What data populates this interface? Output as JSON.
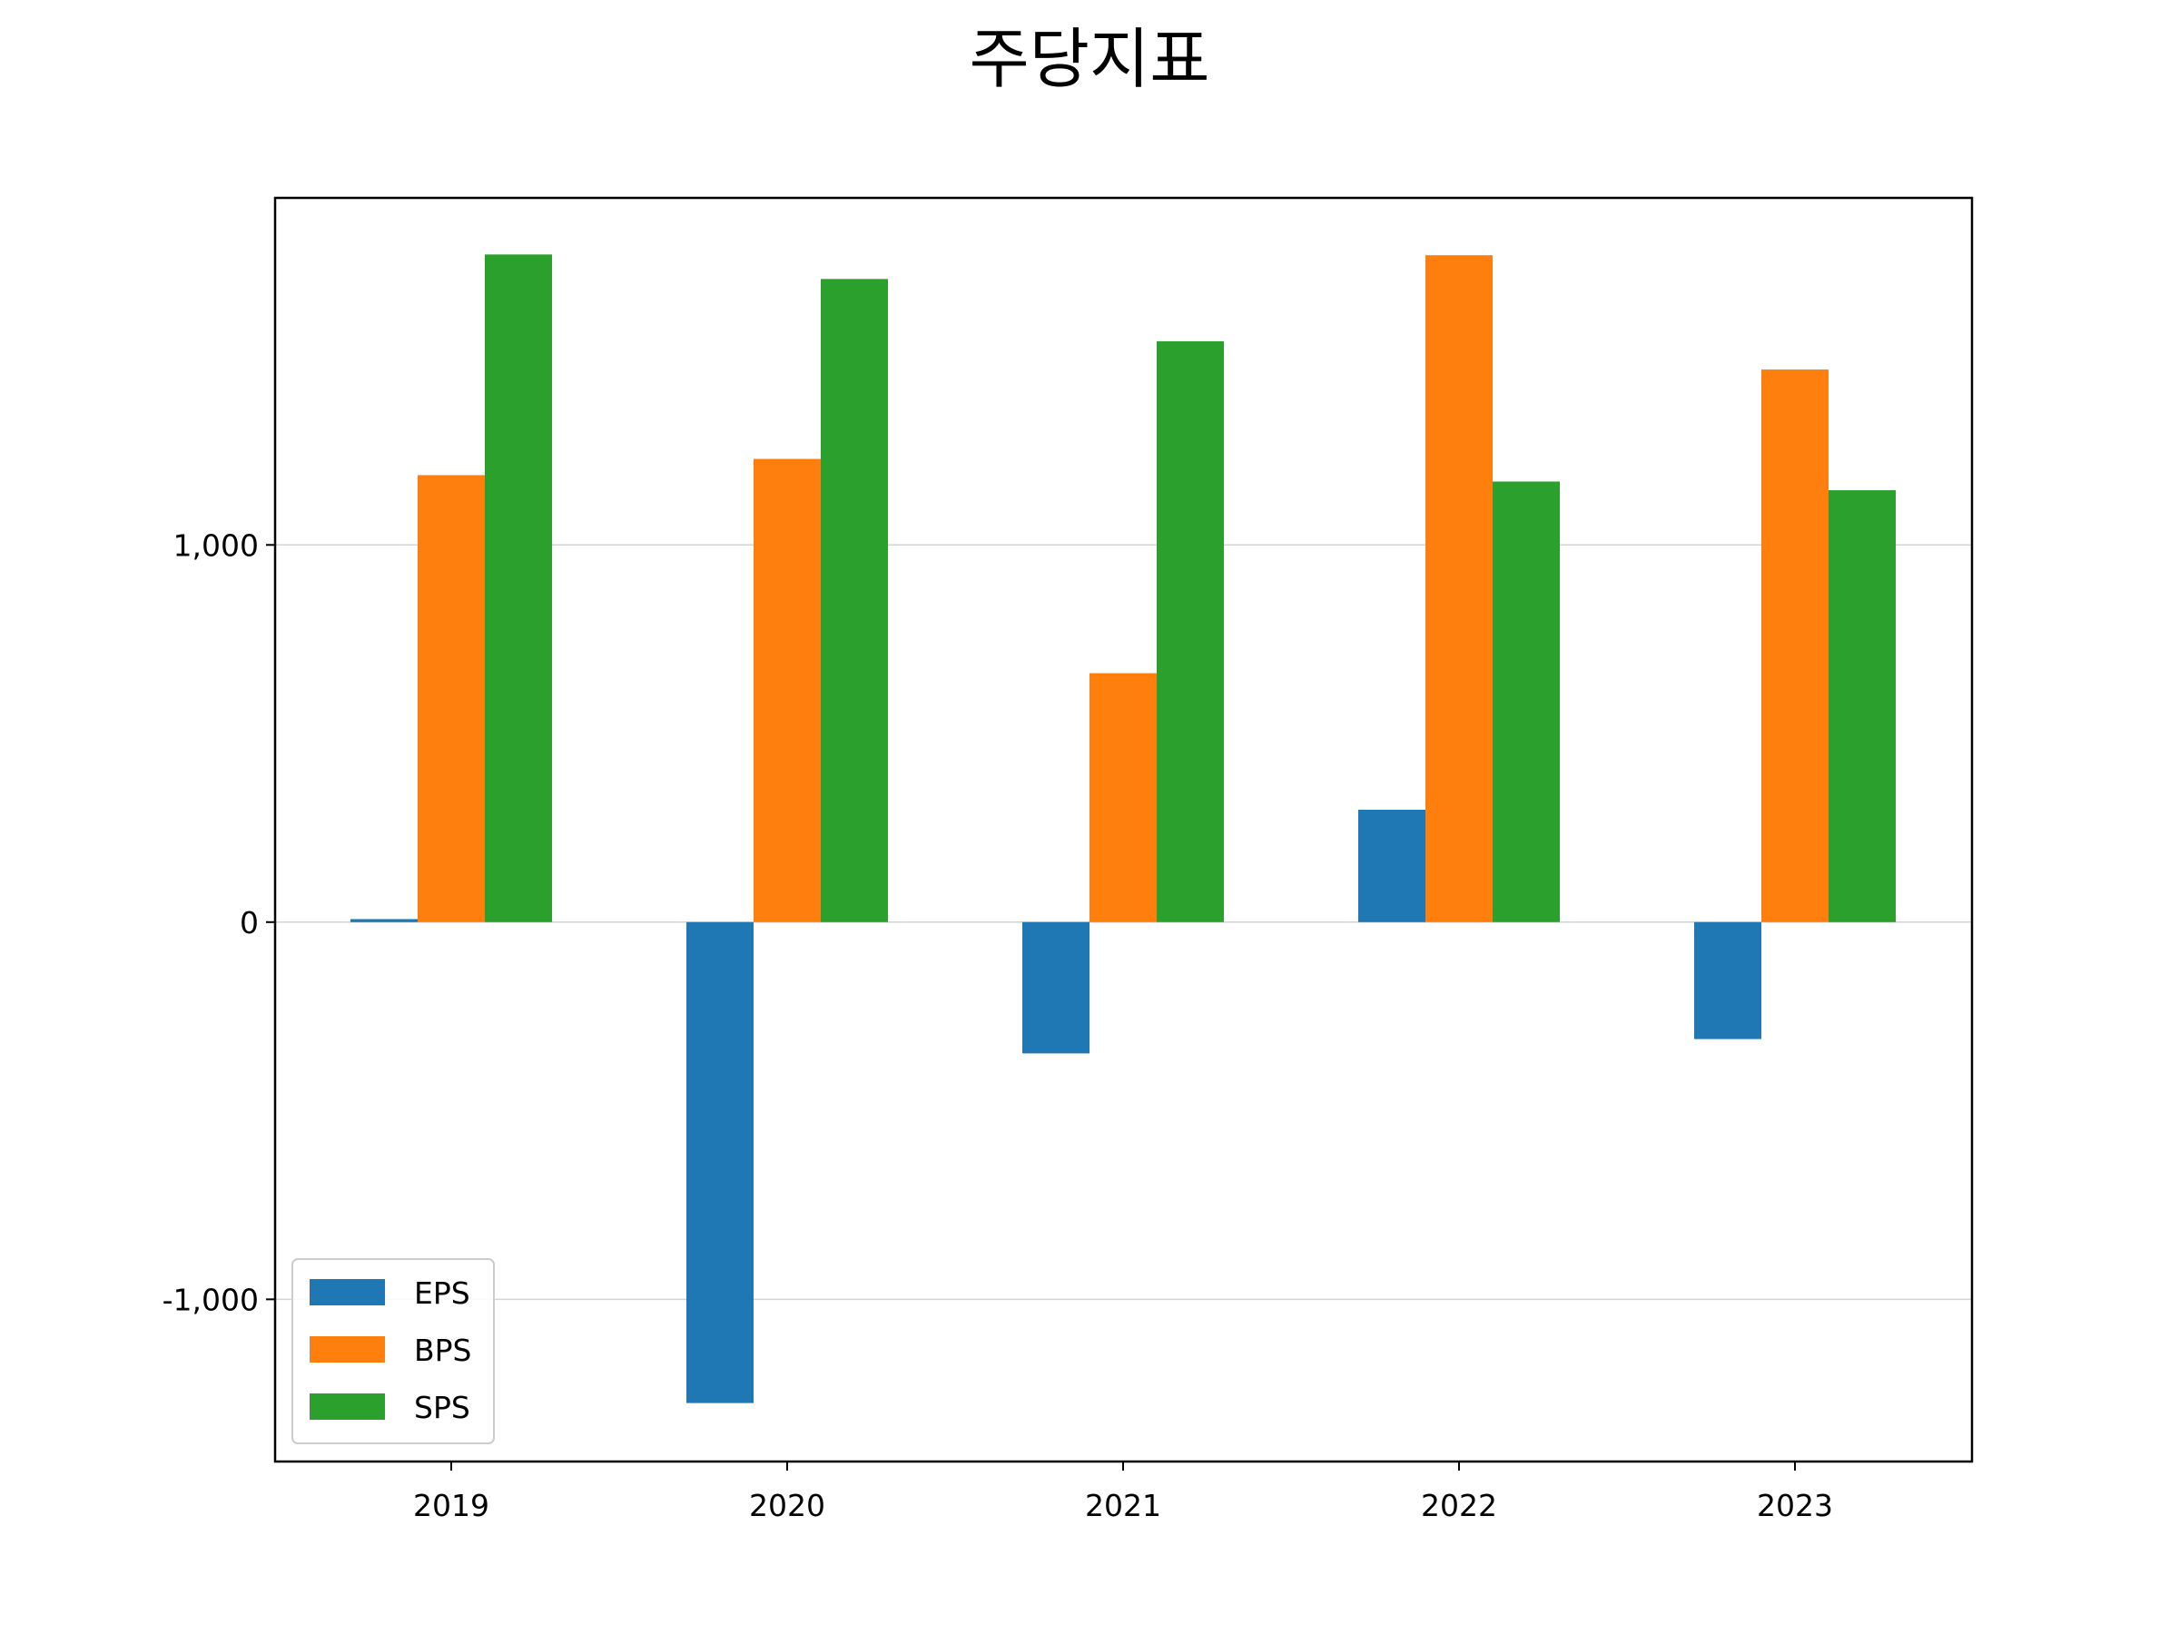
{
  "chart_data": {
    "type": "bar",
    "title": "주당지표",
    "xlabel": "",
    "ylabel": "",
    "categories": [
      "2019",
      "2020",
      "2021",
      "2022",
      "2023"
    ],
    "series": [
      {
        "name": "EPS",
        "color": "#1f77b4",
        "values": [
          8,
          -1275,
          -348,
          298,
          -310
        ]
      },
      {
        "name": "BPS",
        "color": "#ff7f0e",
        "values": [
          1185,
          1228,
          660,
          1768,
          1465
        ]
      },
      {
        "name": "SPS",
        "color": "#2ca02c",
        "values": [
          1770,
          1705,
          1540,
          1168,
          1145
        ]
      }
    ],
    "ylim": [
      -1430,
      1920
    ],
    "yticks": [
      -1000,
      0,
      1000
    ],
    "ytick_labels": [
      "-1,000",
      "0",
      "1,000"
    ],
    "grid": "horizontal",
    "legend_position": "lower-left"
  }
}
